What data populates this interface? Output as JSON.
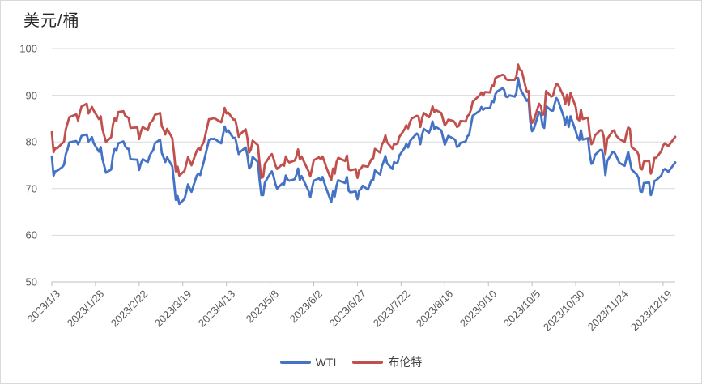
{
  "title": "美元/桶",
  "colors": {
    "wti_blue": "#4472C4",
    "brent_red": "#C0504D",
    "gridline": "#D9D9D9",
    "axis_line": "#BFBFBF",
    "tick_text": "#595959",
    "title_text": "#262626",
    "background": "#FFFFFF"
  },
  "chart_data": {
    "type": "line",
    "title": "美元/桶",
    "ylabel": "美元/桶",
    "xlabel": "",
    "ylim": [
      50,
      100
    ],
    "y_ticks": [
      50,
      60,
      70,
      80,
      90,
      100
    ],
    "grid": "horizontal",
    "legend_position": "bottom-center",
    "x_axis_note": "daily calendar-day categories from 2023/1/3 (day 0) to 2023/12/26 (day 357), tick labels every 25 days",
    "x_tick_interval_days": 25,
    "x_tick_labels": [
      "2023/1/3",
      "2023/1/28",
      "2023/2/22",
      "2023/3/19",
      "2023/4/13",
      "2023/5/8",
      "2023/6/2",
      "2023/6/27",
      "2023/7/22",
      "2023/8/16",
      "2023/9/10",
      "2023/10/5",
      "2023/10/30",
      "2023/11/24",
      "2023/12/19"
    ],
    "x_days": [
      0,
      1,
      2,
      3,
      6,
      7,
      8,
      9,
      10,
      14,
      15,
      16,
      17,
      20,
      21,
      23,
      24,
      27,
      28,
      29,
      31,
      34,
      35,
      36,
      37,
      38,
      41,
      42,
      43,
      44,
      45,
      49,
      50,
      51,
      52,
      55,
      56,
      57,
      58,
      59,
      62,
      63,
      64,
      65,
      66,
      69,
      70,
      71,
      72,
      73,
      76,
      77,
      78,
      79,
      80,
      83,
      84,
      85,
      86,
      87,
      90,
      91,
      92,
      93,
      97,
      98,
      99,
      100,
      101,
      104,
      105,
      106,
      107,
      108,
      111,
      112,
      113,
      114,
      115,
      118,
      119,
      120,
      121,
      122,
      125,
      126,
      127,
      128,
      129,
      132,
      133,
      134,
      135,
      136,
      139,
      140,
      141,
      142,
      143,
      147,
      148,
      149,
      150,
      153,
      154,
      155,
      156,
      157,
      160,
      161,
      162,
      163,
      164,
      168,
      169,
      170,
      171,
      174,
      175,
      176,
      177,
      178,
      181,
      183,
      184,
      185,
      188,
      189,
      190,
      191,
      192,
      195,
      196,
      197,
      198,
      199,
      202,
      203,
      204,
      205,
      206,
      209,
      210,
      211,
      212,
      213,
      216,
      217,
      218,
      219,
      220,
      223,
      224,
      225,
      226,
      227,
      230,
      231,
      232,
      233,
      234,
      237,
      238,
      239,
      240,
      241,
      245,
      246,
      247,
      248,
      251,
      252,
      253,
      254,
      255,
      258,
      259,
      260,
      261,
      262,
      265,
      266,
      267,
      268,
      269,
      272,
      273,
      274,
      275,
      276,
      279,
      280,
      281,
      282,
      283,
      286,
      287,
      288,
      289,
      290,
      293,
      294,
      295,
      296,
      297,
      300,
      301,
      302,
      303,
      304,
      307,
      308,
      309,
      310,
      311,
      314,
      315,
      316,
      317,
      318,
      321,
      322,
      323,
      325,
      328,
      329,
      330,
      331,
      332,
      335,
      336,
      337,
      338,
      339,
      342,
      343,
      344,
      345,
      346,
      349,
      350,
      351,
      352,
      353,
      357
    ],
    "series": [
      {
        "name": "WTI",
        "color": "#4472C4",
        "values": [
          76.9,
          72.8,
          73.7,
          73.8,
          74.6,
          75.1,
          77.4,
          78.4,
          79.9,
          80.2,
          79.5,
          80.3,
          81.3,
          81.6,
          80.1,
          81.0,
          79.7,
          77.9,
          78.9,
          76.4,
          73.4,
          74.1,
          77.1,
          78.5,
          78.1,
          79.7,
          80.1,
          79.1,
          78.6,
          78.5,
          76.3,
          76.2,
          74.0,
          75.4,
          76.3,
          75.7,
          77.0,
          77.7,
          78.2,
          79.7,
          80.5,
          77.6,
          76.7,
          75.7,
          76.7,
          74.8,
          71.3,
          67.6,
          68.4,
          66.7,
          67.8,
          69.3,
          70.9,
          70.0,
          69.3,
          72.8,
          73.2,
          72.9,
          74.4,
          75.7,
          80.4,
          80.7,
          80.6,
          80.7,
          79.7,
          81.5,
          83.3,
          82.2,
          82.5,
          80.8,
          80.9,
          79.2,
          77.4,
          77.9,
          78.8,
          77.1,
          74.3,
          74.8,
          76.8,
          75.7,
          71.7,
          68.6,
          68.6,
          71.3,
          73.2,
          73.7,
          72.6,
          71.0,
          70.0,
          71.1,
          70.9,
          72.8,
          71.9,
          71.7,
          72.0,
          72.9,
          74.3,
          71.8,
          72.7,
          69.5,
          68.1,
          70.1,
          71.7,
          72.2,
          71.7,
          72.5,
          71.3,
          70.2,
          67.1,
          69.4,
          68.3,
          70.6,
          71.8,
          71.2,
          72.5,
          69.5,
          69.2,
          69.4,
          67.7,
          69.6,
          69.9,
          70.6,
          69.8,
          71.8,
          71.8,
          73.9,
          73.0,
          74.8,
          75.8,
          77.0,
          75.4,
          74.2,
          75.7,
          75.4,
          75.6,
          77.1,
          78.7,
          79.6,
          78.8,
          80.1,
          80.6,
          81.8,
          81.4,
          79.5,
          81.6,
          82.8,
          82.0,
          82.9,
          84.4,
          82.8,
          83.2,
          82.5,
          81.0,
          79.4,
          80.4,
          81.3,
          80.7,
          80.4,
          78.9,
          79.1,
          79.8,
          80.1,
          81.2,
          81.6,
          83.6,
          85.6,
          86.7,
          87.5,
          86.9,
          87.2,
          87.3,
          88.8,
          88.5,
          90.2,
          90.8,
          91.5,
          91.2,
          89.7,
          89.6,
          90.0,
          89.7,
          90.4,
          93.7,
          91.7,
          90.8,
          88.8,
          89.2,
          84.2,
          82.3,
          82.8,
          86.4,
          86.0,
          83.5,
          83.0,
          87.7,
          86.7,
          86.7,
          88.3,
          89.4,
          88.8,
          85.5,
          83.7,
          85.4,
          83.2,
          85.5,
          82.3,
          81.0,
          80.4,
          82.5,
          80.5,
          80.8,
          77.4,
          75.3,
          75.7,
          77.2,
          78.3,
          78.3,
          76.7,
          72.9,
          75.9,
          77.8,
          77.8,
          77.1,
          75.5,
          74.9,
          76.4,
          77.9,
          76.0,
          74.1,
          73.0,
          72.3,
          69.4,
          69.3,
          71.2,
          71.3,
          68.6,
          69.5,
          71.6,
          71.8,
          72.8,
          73.9,
          74.2,
          73.9,
          73.6,
          75.6
        ]
      },
      {
        "name": "布伦特",
        "color": "#C0504D",
        "values": [
          82.1,
          77.8,
          78.7,
          78.6,
          79.7,
          80.1,
          82.7,
          84.0,
          85.3,
          85.9,
          84.6,
          86.2,
          87.6,
          88.2,
          86.1,
          87.5,
          86.7,
          84.9,
          85.5,
          82.8,
          80.0,
          81.0,
          83.7,
          85.1,
          84.5,
          86.4,
          86.6,
          85.6,
          85.4,
          85.1,
          83.0,
          83.1,
          80.6,
          82.2,
          83.2,
          82.5,
          83.9,
          84.3,
          84.8,
          85.8,
          86.2,
          83.3,
          82.7,
          81.6,
          82.8,
          80.8,
          77.5,
          73.7,
          74.7,
          72.8,
          73.8,
          75.3,
          76.7,
          75.9,
          75.0,
          78.1,
          78.7,
          78.3,
          79.3,
          79.9,
          84.9,
          84.9,
          85.0,
          85.1,
          84.2,
          85.6,
          87.3,
          86.1,
          86.3,
          84.8,
          84.8,
          83.1,
          81.1,
          81.7,
          82.7,
          80.8,
          77.7,
          78.4,
          80.3,
          79.3,
          75.3,
          72.3,
          72.5,
          75.3,
          77.0,
          77.4,
          76.4,
          75.0,
          74.2,
          75.2,
          74.9,
          76.9,
          76.0,
          75.6,
          76.0,
          76.8,
          78.4,
          76.3,
          76.9,
          73.7,
          72.6,
          74.3,
          76.1,
          76.7,
          76.3,
          76.9,
          75.9,
          74.8,
          71.8,
          74.3,
          73.2,
          75.7,
          76.6,
          75.9,
          77.1,
          74.1,
          73.9,
          74.2,
          72.3,
          74.0,
          74.3,
          74.9,
          74.7,
          76.3,
          76.5,
          78.5,
          77.7,
          79.4,
          80.1,
          81.4,
          79.9,
          78.5,
          79.6,
          79.5,
          79.7,
          81.1,
          82.7,
          83.6,
          82.9,
          84.2,
          85.0,
          85.6,
          85.4,
          83.2,
          85.1,
          86.2,
          85.3,
          86.2,
          87.6,
          86.4,
          86.8,
          86.2,
          84.9,
          83.5,
          84.1,
          84.8,
          84.5,
          84.0,
          83.2,
          83.4,
          84.5,
          84.4,
          85.5,
          85.9,
          86.9,
          88.6,
          90.0,
          90.6,
          89.9,
          90.7,
          90.6,
          92.1,
          92.0,
          93.7,
          93.9,
          94.4,
          94.3,
          93.5,
          93.3,
          93.3,
          93.3,
          94.0,
          96.6,
          95.4,
          95.3,
          90.7,
          90.9,
          85.8,
          84.1,
          84.6,
          88.2,
          87.7,
          85.8,
          86.0,
          90.9,
          89.7,
          89.9,
          91.5,
          92.4,
          92.2,
          89.8,
          88.1,
          90.1,
          87.9,
          90.5,
          87.5,
          85.0,
          84.6,
          86.9,
          84.9,
          85.2,
          81.6,
          79.5,
          80.0,
          81.4,
          82.5,
          82.5,
          81.2,
          77.4,
          80.6,
          82.3,
          82.5,
          81.4,
          80.6,
          80.0,
          81.7,
          83.1,
          82.8,
          78.9,
          78.0,
          77.2,
          74.3,
          74.1,
          75.8,
          76.0,
          73.2,
          74.3,
          76.6,
          76.6,
          78.0,
          79.2,
          79.7,
          79.4,
          79.1,
          81.1
        ]
      }
    ]
  }
}
